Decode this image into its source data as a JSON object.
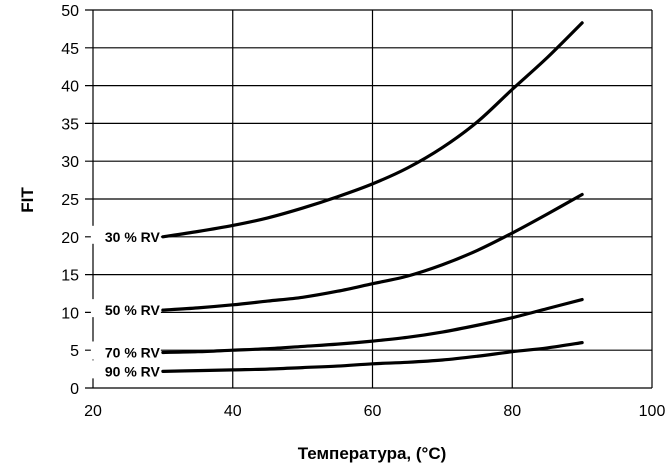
{
  "chart_data": {
    "type": "line",
    "xlabel": "Температура, (°C)",
    "ylabel": "FIT",
    "xlim": [
      20,
      100
    ],
    "ylim": [
      0,
      50
    ],
    "xticks": [
      "20",
      "40",
      "60",
      "80",
      "100"
    ],
    "yticks": [
      "0",
      "5",
      "10",
      "15",
      "20",
      "25",
      "30",
      "35",
      "40",
      "45",
      "50"
    ],
    "grid": true,
    "series": [
      {
        "name": "30 % RV",
        "x": [
          30,
          35,
          40,
          45,
          50,
          55,
          60,
          65,
          70,
          75,
          80,
          85,
          90
        ],
        "y": [
          20,
          20.7,
          21.5,
          22.5,
          23.8,
          25.3,
          27,
          29.1,
          31.8,
          35.2,
          39.5,
          43.7,
          48.3
        ]
      },
      {
        "name": "50 % RV",
        "x": [
          30,
          35,
          40,
          45,
          50,
          55,
          60,
          65,
          70,
          75,
          80,
          85,
          90
        ],
        "y": [
          10.3,
          10.6,
          11,
          11.5,
          12,
          12.8,
          13.8,
          14.8,
          16.3,
          18.2,
          20.5,
          23,
          25.6
        ]
      },
      {
        "name": "70 % RV",
        "x": [
          30,
          35,
          40,
          45,
          50,
          55,
          60,
          65,
          70,
          75,
          80,
          85,
          90
        ],
        "y": [
          4.7,
          4.8,
          5,
          5.2,
          5.5,
          5.8,
          6.2,
          6.7,
          7.4,
          8.3,
          9.3,
          10.5,
          11.7
        ]
      },
      {
        "name": "90 % RV",
        "x": [
          30,
          35,
          40,
          45,
          50,
          55,
          60,
          65,
          70,
          75,
          80,
          85,
          90
        ],
        "y": [
          2.2,
          2.3,
          2.4,
          2.5,
          2.7,
          2.9,
          3.2,
          3.4,
          3.7,
          4.2,
          4.8,
          5.3,
          6
        ]
      }
    ]
  }
}
